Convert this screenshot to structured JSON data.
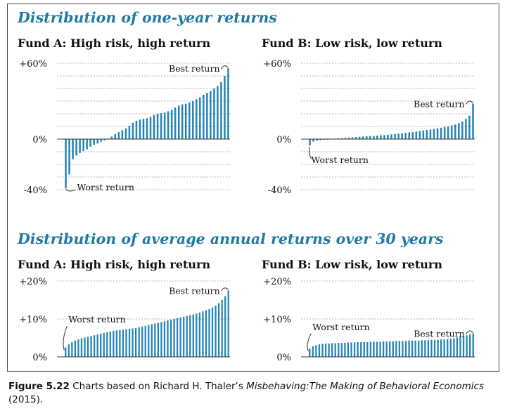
{
  "section_titles": {
    "one_year": "Distribution of one-year returns",
    "thirty_year": "Distribution of average annual returns over 30 years"
  },
  "caption": {
    "figure_label": "Figure 5.22",
    "text_before": " Charts based on Richard H. Thaler’s ",
    "book_title": "Misbehaving:The Making of Behavioral Economics",
    "text_after": " (2015)."
  },
  "colors": {
    "accent": "#1f79a7",
    "bar": "#2584b6",
    "grid": "#9a9a9a"
  },
  "chart_data": [
    {
      "type": "bar",
      "title": "Fund A: High risk, high return",
      "section": "one_year",
      "yticks": [
        60,
        0,
        -40
      ],
      "ytick_labels": [
        "+60%",
        "0%",
        "-40%"
      ],
      "ylim": [
        -40,
        60
      ],
      "grid": true,
      "annotations": {
        "best": "Best return",
        "worst": "Worst return"
      },
      "values": [
        -39,
        -28,
        -16,
        -13,
        -11,
        -9.5,
        -8,
        -6,
        -4.5,
        -3.5,
        -2,
        -1,
        0.5,
        2,
        4,
        5.5,
        7,
        8.5,
        10.5,
        13,
        14.5,
        15.5,
        16,
        16.5,
        17.5,
        19,
        20,
        20.5,
        21,
        22,
        23,
        25,
        26.5,
        27.5,
        28,
        29,
        30,
        31.5,
        33,
        35,
        36.5,
        38,
        40,
        42,
        45,
        50,
        56
      ]
    },
    {
      "type": "bar",
      "title": "Fund B: Low risk, low return",
      "section": "one_year",
      "yticks": [
        60,
        0,
        -40
      ],
      "ytick_labels": [
        "+60%",
        "0%",
        "-40%"
      ],
      "ylim": [
        -40,
        60
      ],
      "grid": true,
      "annotations": {
        "best": "Best return",
        "worst": "Worst return"
      },
      "values": [
        -5,
        -2,
        -1.2,
        -0.8,
        -0.4,
        0,
        0.2,
        0.4,
        0.6,
        0.8,
        1,
        1.2,
        1.4,
        1.6,
        1.8,
        2,
        2.2,
        2.4,
        2.6,
        2.8,
        3,
        3.2,
        3.4,
        3.7,
        4,
        4.3,
        4.6,
        5,
        5.3,
        5.6,
        6,
        6.4,
        6.8,
        7.2,
        7.6,
        8,
        8.5,
        9,
        9.6,
        10.2,
        10.8,
        11.5,
        12.5,
        14,
        16,
        18.5,
        28
      ]
    },
    {
      "type": "bar",
      "title": "Fund A: High risk, high return",
      "section": "thirty_year",
      "yticks": [
        20,
        10,
        0
      ],
      "ytick_labels": [
        "+20%",
        "+10%",
        "0%"
      ],
      "ylim": [
        0,
        20
      ],
      "grid": true,
      "annotations": {
        "best": "Best return",
        "worst": "Worst return"
      },
      "values": [
        2.5,
        3.3,
        3.9,
        4.3,
        4.6,
        4.9,
        5.1,
        5.3,
        5.5,
        5.7,
        5.9,
        6.1,
        6.3,
        6.5,
        6.7,
        6.9,
        7.0,
        7.1,
        7.2,
        7.3,
        7.4,
        7.5,
        7.6,
        7.8,
        8.0,
        8.2,
        8.4,
        8.6,
        8.8,
        9.0,
        9.2,
        9.4,
        9.6,
        9.8,
        10.0,
        10.2,
        10.4,
        10.6,
        10.8,
        11.0,
        11.2,
        11.4,
        11.7,
        12.0,
        12.3,
        12.6,
        13.0,
        13.5,
        14.2,
        15.0,
        16.0,
        17.5
      ]
    },
    {
      "type": "bar",
      "title": "Fund B: Low risk, low return",
      "section": "thirty_year",
      "yticks": [
        20,
        10,
        0
      ],
      "ytick_labels": [
        "+20%",
        "+10%",
        "0%"
      ],
      "ylim": [
        0,
        20
      ],
      "grid": true,
      "annotations": {
        "best": "Best return",
        "worst": "Worst return"
      },
      "values": [
        2.2,
        2.8,
        3.1,
        3.3,
        3.4,
        3.5,
        3.5,
        3.6,
        3.6,
        3.7,
        3.7,
        3.7,
        3.8,
        3.8,
        3.8,
        3.9,
        3.9,
        3.9,
        3.9,
        4.0,
        4.0,
        4.0,
        4.0,
        4.1,
        4.1,
        4.1,
        4.1,
        4.2,
        4.2,
        4.2,
        4.2,
        4.3,
        4.3,
        4.3,
        4.3,
        4.4,
        4.4,
        4.4,
        4.5,
        4.5,
        4.5,
        4.6,
        4.6,
        4.7,
        4.8,
        4.9,
        5.1,
        5.3,
        5.5,
        5.7,
        5.9,
        6.2
      ]
    }
  ]
}
